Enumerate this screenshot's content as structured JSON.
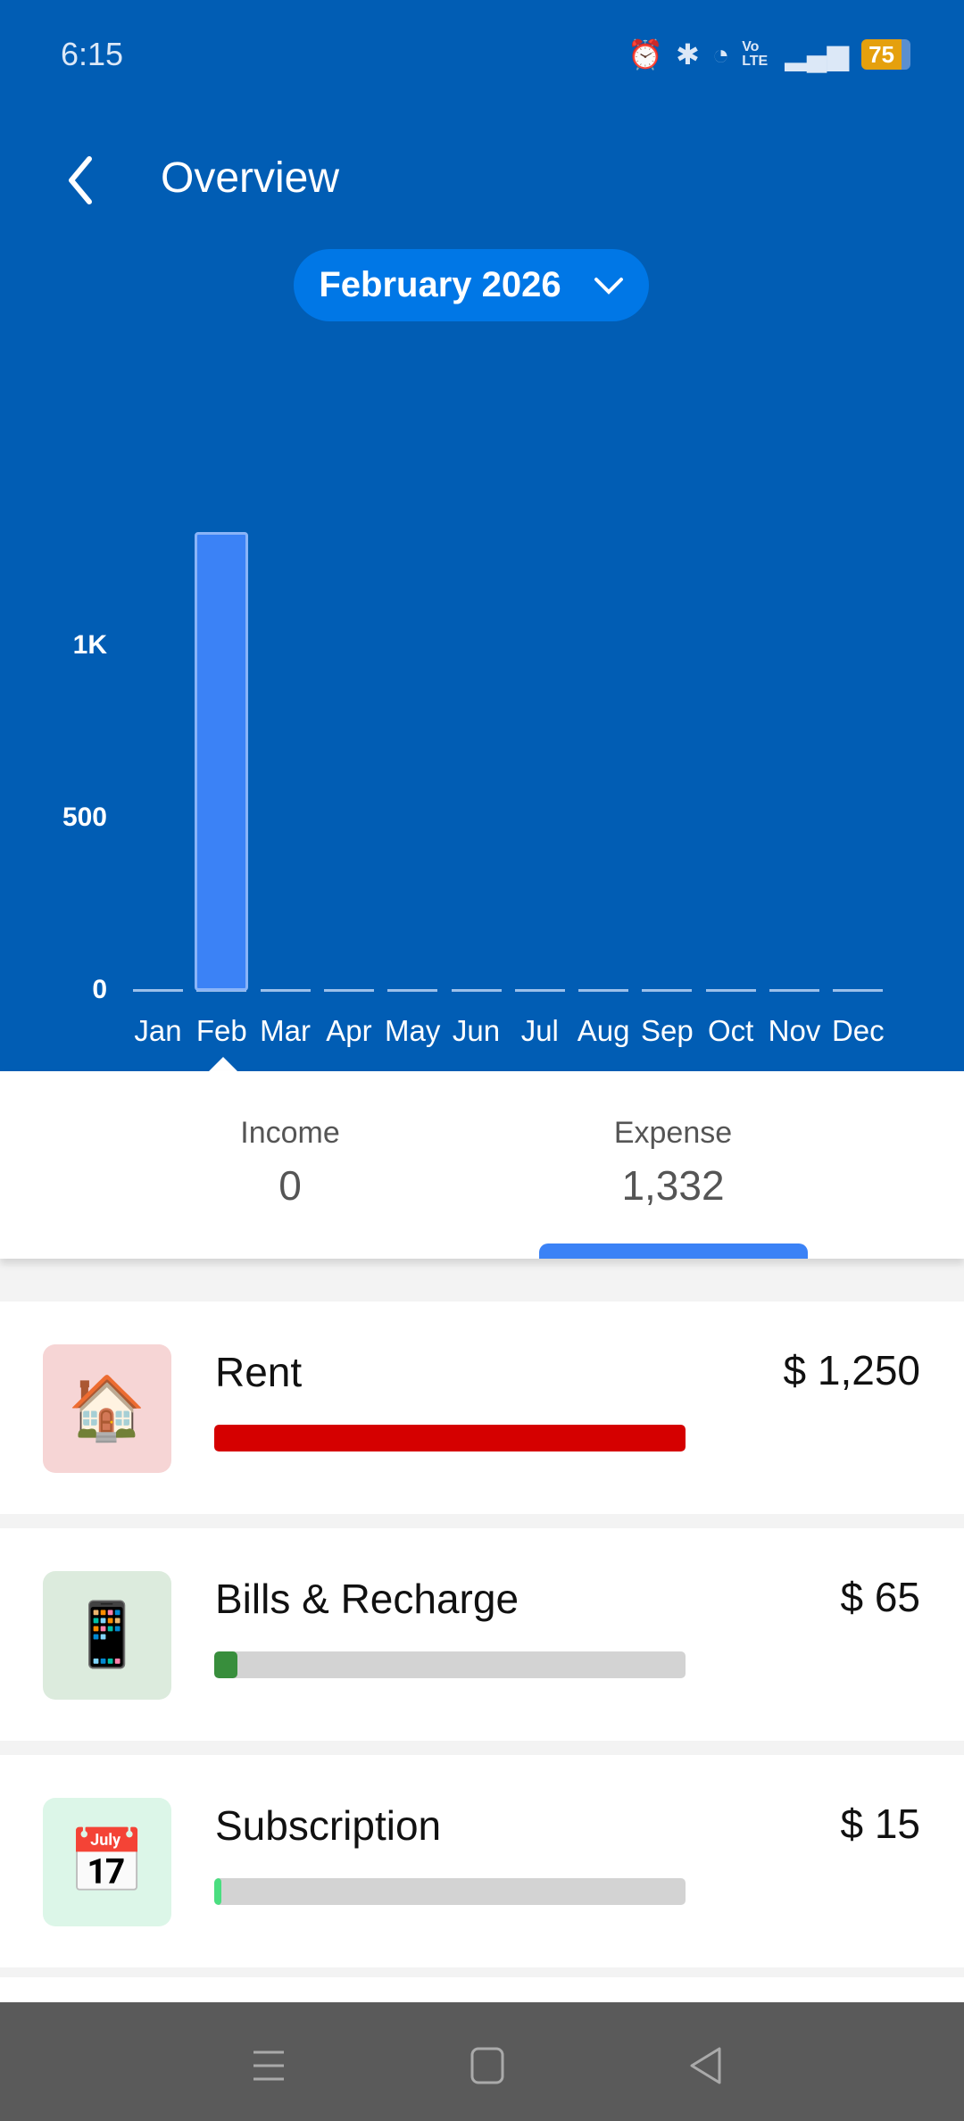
{
  "status_bar": {
    "time": "6:15",
    "battery": "75",
    "icons": [
      "alarm-icon",
      "bluetooth-icon",
      "wifi-icon",
      "volte-icon",
      "signal-icon",
      "battery-icon"
    ],
    "volte": "Vo LTE"
  },
  "header": {
    "title": "Overview",
    "period": "February 2026"
  },
  "chart_data": {
    "type": "bar",
    "categories": [
      "Jan",
      "Feb",
      "Mar",
      "Apr",
      "May",
      "Jun",
      "Jul",
      "Aug",
      "Sep",
      "Oct",
      "Nov",
      "Dec"
    ],
    "values": [
      0,
      1332,
      0,
      0,
      0,
      0,
      0,
      0,
      0,
      0,
      0,
      0
    ],
    "ytick_labels": [
      "0",
      "500",
      "1K"
    ],
    "yticks": [
      0,
      500,
      1000
    ],
    "selected": "Feb",
    "grid": false
  },
  "summary": {
    "income_label": "Income",
    "income_value": "0",
    "expense_label": "Expense",
    "expense_value": "1,332",
    "active_tab": "Expense"
  },
  "categories": [
    {
      "name": "Rent",
      "amount": "$ 1,250",
      "fraction": 1.0,
      "color": "#d50000",
      "icon": "rent-house-icon",
      "icon_bg": "#f6d5d5"
    },
    {
      "name": "Bills & Recharge",
      "amount": "$ 65",
      "fraction": 0.05,
      "color": "#388e3c",
      "icon": "bills-phone-icon",
      "icon_bg": "#dcebdd"
    },
    {
      "name": "Subscription",
      "amount": "$ 15",
      "fraction": 0.012,
      "color": "#4ade80",
      "icon": "subscription-calendar-icon",
      "icon_bg": "#dcf6e8"
    }
  ]
}
